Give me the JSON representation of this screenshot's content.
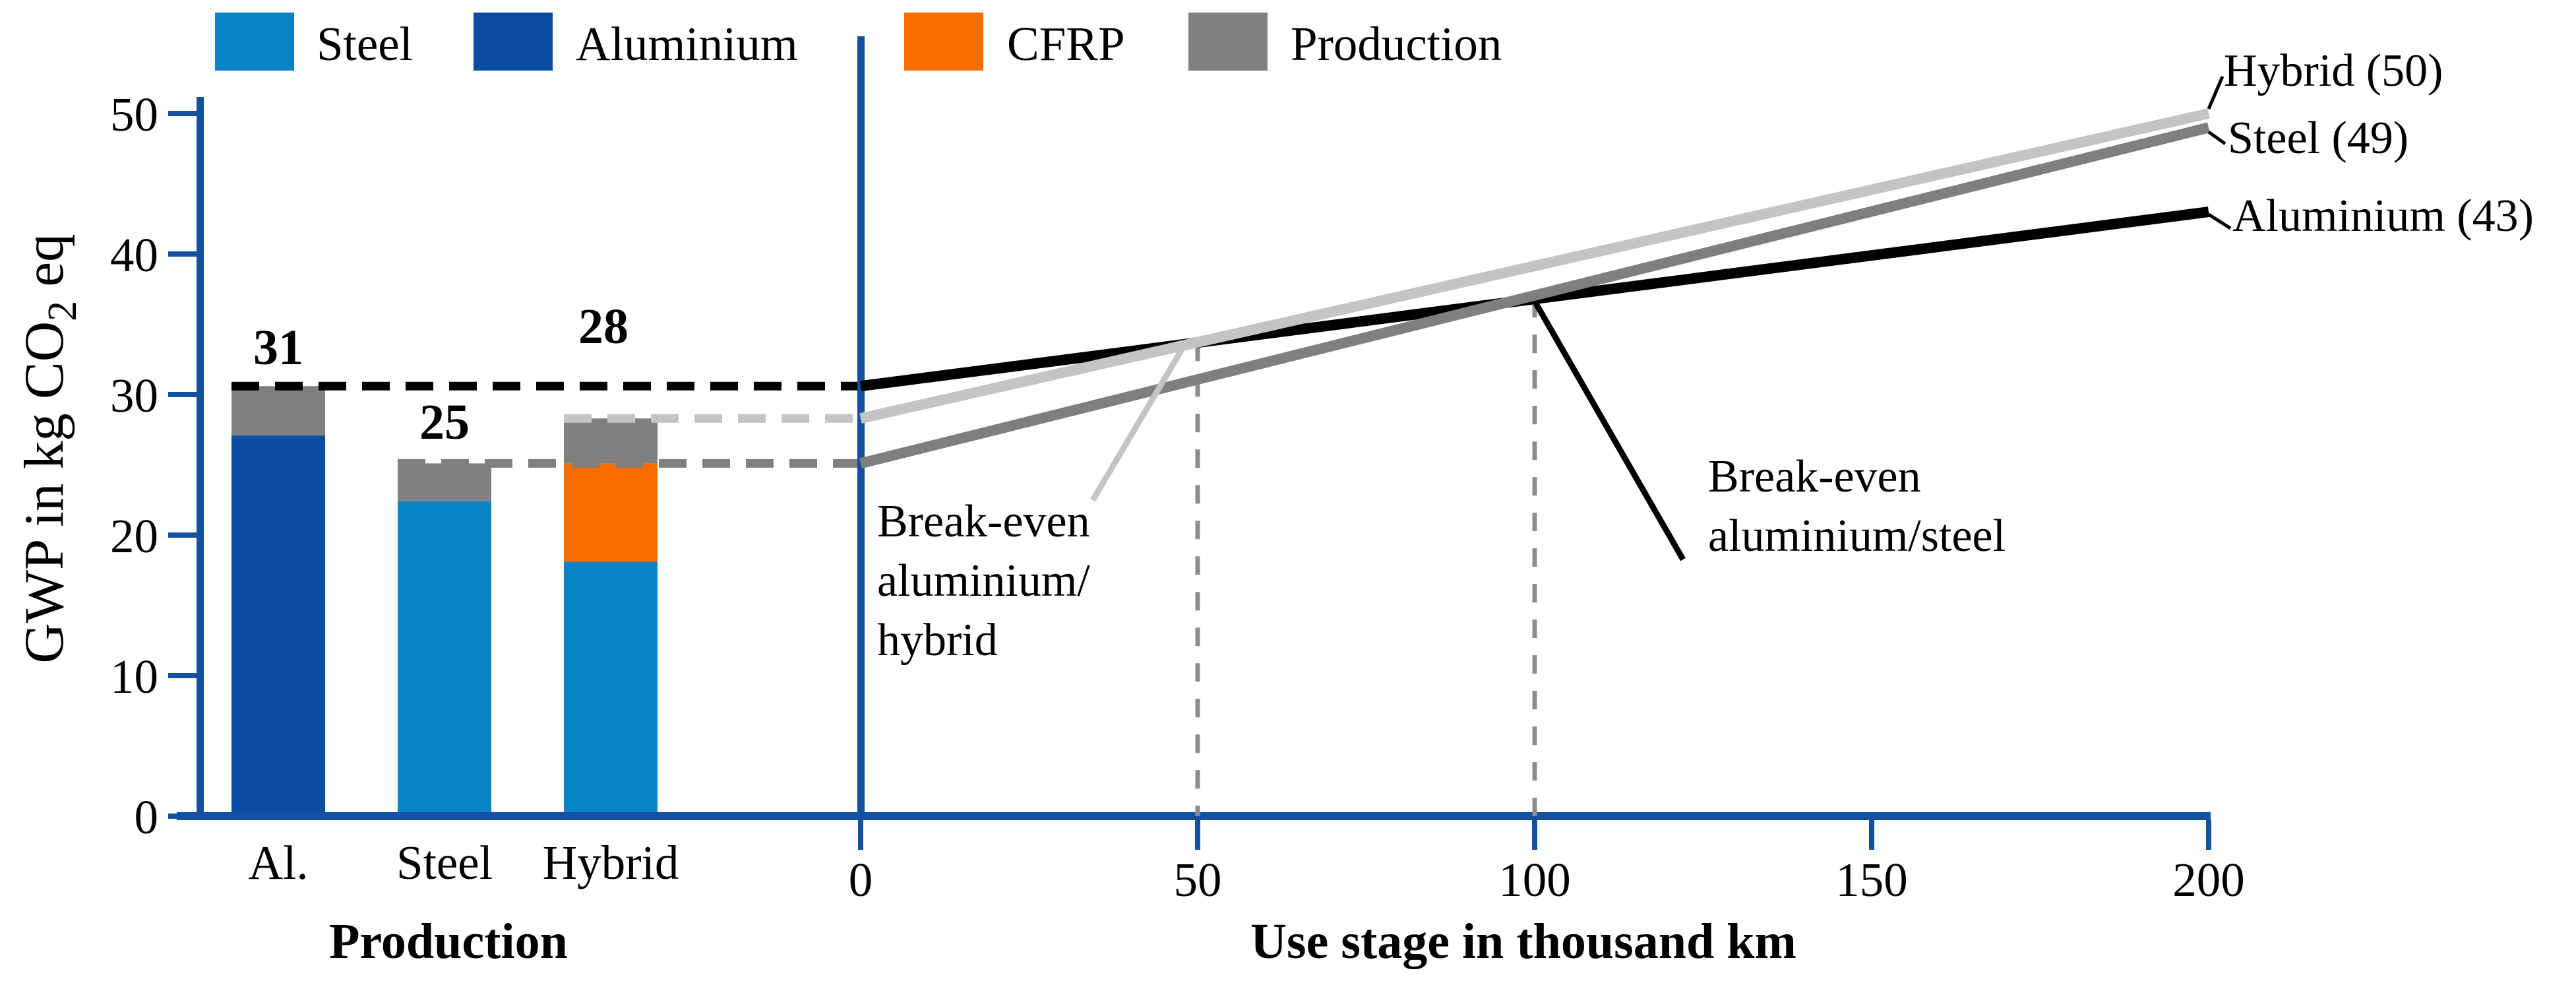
{
  "figure": {
    "background": "#ffffff",
    "axis_color": "#1450A0"
  },
  "legend": {
    "items": [
      {
        "label": "Steel",
        "color": "#0884C6"
      },
      {
        "label": "Aluminium",
        "color": "#0B4DA2"
      },
      {
        "label": "CFRP",
        "color": "#F86C00"
      },
      {
        "label": "Production",
        "color": "#808080"
      }
    ]
  },
  "axes": {
    "y": {
      "title_prefix": "GWP in kg CO",
      "title_sub": "2",
      "title_suffix": " eq",
      "ticks": [
        0,
        10,
        20,
        30,
        40,
        50
      ],
      "ylim": [
        0,
        50
      ]
    }
  },
  "chart_data": [
    {
      "type": "bar",
      "title": "Production",
      "categories": [
        "Al.",
        "Steel",
        "Hybrid"
      ],
      "ylabel": "GWP in kg CO2 eq",
      "ylim": [
        0,
        50
      ],
      "bars": [
        {
          "category": "Al.",
          "segments": [
            {
              "name": "Aluminium",
              "value": 27.1
            },
            {
              "name": "Production",
              "value": 3.5
            }
          ],
          "total": 30.6,
          "total_label": "31"
        },
        {
          "category": "Steel",
          "segments": [
            {
              "name": "Steel",
              "value": 22.4
            },
            {
              "name": "Production",
              "value": 2.7
            }
          ],
          "total": 25.1,
          "total_label": "25"
        },
        {
          "category": "Hybrid",
          "segments": [
            {
              "name": "Steel",
              "value": 18.1
            },
            {
              "name": "CFRP",
              "value": 7.0
            },
            {
              "name": "Production",
              "value": 3.2
            }
          ],
          "total": 28.3,
          "total_label": "28"
        }
      ],
      "reference_lines": [
        {
          "y": 30.6,
          "color": "#000000",
          "from_bar": 0
        },
        {
          "y": 28.3,
          "color": "#C4C4C4",
          "from_bar": 2
        },
        {
          "y": 25.1,
          "color": "#7F7F7F",
          "from_bar": 1
        }
      ]
    },
    {
      "type": "line",
      "xlabel": "Use stage in thousand km",
      "x_ticks": [
        0,
        50,
        100,
        150,
        200
      ],
      "xlim": [
        0,
        200
      ],
      "series": [
        {
          "name": "Aluminium",
          "color": "#000000",
          "x": [
            0,
            200
          ],
          "y": [
            30.6,
            43
          ],
          "end_label": "Aluminium (43)"
        },
        {
          "name": "Steel",
          "color": "#7F7F7F",
          "x": [
            0,
            200
          ],
          "y": [
            25.1,
            49
          ],
          "end_label": "Steel (49)"
        },
        {
          "name": "Hybrid",
          "color": "#C4C4C4",
          "x": [
            0,
            200
          ],
          "y": [
            28.3,
            50
          ],
          "end_label": "Hybrid (50)"
        }
      ],
      "break_even": [
        {
          "x": 50,
          "label_lines": [
            "Break-even",
            "aluminium/",
            "hybrid"
          ]
        },
        {
          "x": 100,
          "label_lines": [
            "Break-even",
            "aluminium/steel"
          ]
        }
      ]
    }
  ]
}
